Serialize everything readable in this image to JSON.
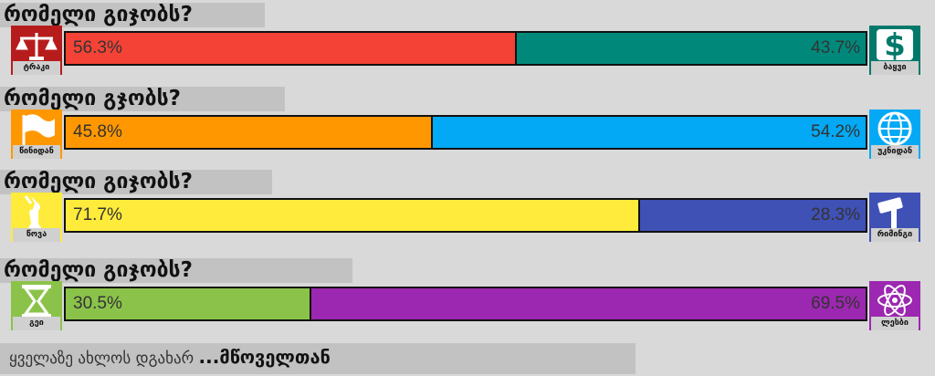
{
  "rows": [
    {
      "question": "რომელი გიჯობს?",
      "left": {
        "label": "ტრაკი",
        "value": 56.3,
        "value_label": "56.3%",
        "color": "#f44336",
        "icon_color": "#b71c1c"
      },
      "right": {
        "label": "ბაყვი",
        "value": 43.7,
        "value_label": "43.7%",
        "color": "#00897b",
        "icon_color": "#00796b"
      }
    },
    {
      "question": "რომელი გჯობს?",
      "left": {
        "label": "წინიდან",
        "value": 45.8,
        "value_label": "45.8%",
        "color": "#ff9800",
        "icon_color": "#ff9800"
      },
      "right": {
        "label": "უკნიდან",
        "value": 54.2,
        "value_label": "54.2%",
        "color": "#03a9f4",
        "icon_color": "#03a9f4"
      }
    },
    {
      "question": "რომელი გიჯობს?",
      "left": {
        "label": "წოვა",
        "value": 71.7,
        "value_label": "71.7%",
        "color": "#ffeb3b",
        "icon_color": "#ffeb3b"
      },
      "right": {
        "label": "რიმინგი",
        "value": 28.3,
        "value_label": "28.3%",
        "color": "#3f51b5",
        "icon_color": "#3f51b5"
      }
    },
    {
      "question": "რომელი გიჯობს?",
      "left": {
        "label": "გეი",
        "value": 30.5,
        "value_label": "30.5%",
        "color": "#8bc34a",
        "icon_color": "#8bc34a"
      },
      "right": {
        "label": "ლესბი",
        "value": 69.5,
        "value_label": "69.5%",
        "color": "#9c27b0",
        "icon_color": "#9c27b0"
      }
    }
  ],
  "footer": {
    "text": "ყველაზე ახლოს დგახარ",
    "emphasis": "...მწოველთან"
  }
}
